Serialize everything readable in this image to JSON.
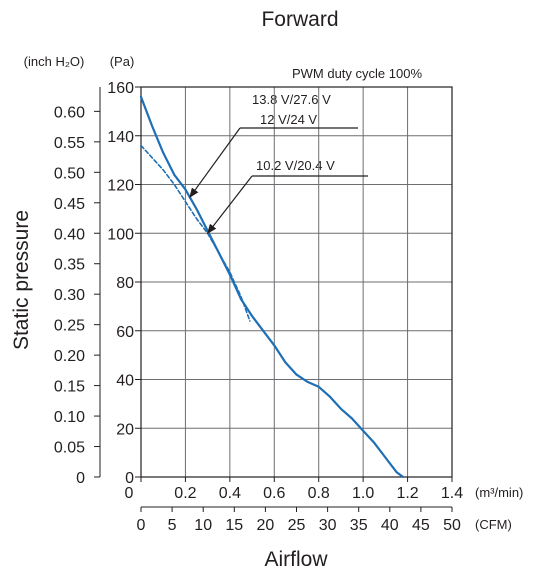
{
  "chart_data": {
    "type": "line",
    "title": "Forward",
    "ylabel": "Static pressure",
    "xlabel": "Airflow",
    "note": "PWM duty cycle 100%",
    "x_primary": {
      "unit": "(m³/min)",
      "range": [
        0,
        1.4
      ],
      "ticks": [
        "0",
        "0.2",
        "0.4",
        "0.6",
        "0.8",
        "1.0",
        "1.2",
        "1.4"
      ]
    },
    "x_secondary": {
      "unit": "(CFM)",
      "range": [
        0,
        50
      ],
      "ticks": [
        "0",
        "5",
        "10",
        "15",
        "20",
        "25",
        "30",
        "35",
        "40",
        "45",
        "50"
      ]
    },
    "y_primary": {
      "unit": "(Pa)",
      "range": [
        0,
        160
      ],
      "ticks": [
        "0",
        "20",
        "40",
        "60",
        "80",
        "100",
        "120",
        "140",
        "160"
      ]
    },
    "y_secondary": {
      "unit": "(inch H₂O)",
      "range": [
        0,
        0.64
      ],
      "ticks": [
        "0",
        "0.05",
        "0.10",
        "0.15",
        "0.20",
        "0.25",
        "0.30",
        "0.35",
        "0.40",
        "0.45",
        "0.50",
        "0.55",
        "0.60"
      ]
    },
    "grid": true,
    "series": [
      {
        "name": "13.8 V/27.6 V",
        "style": "solid",
        "color": "#1f6fb5",
        "points": [
          [
            0,
            156
          ],
          [
            0.05,
            144
          ],
          [
            0.1,
            133
          ],
          [
            0.15,
            124
          ],
          [
            0.2,
            118
          ],
          [
            0.25,
            110
          ],
          [
            0.3,
            101
          ],
          [
            0.35,
            92
          ],
          [
            0.4,
            83
          ],
          [
            0.45,
            73
          ],
          [
            0.5,
            66
          ],
          [
            0.55,
            60
          ],
          [
            0.6,
            54
          ],
          [
            0.65,
            47
          ],
          [
            0.7,
            42
          ],
          [
            0.75,
            39
          ],
          [
            0.8,
            37
          ],
          [
            0.85,
            33
          ],
          [
            0.9,
            28
          ],
          [
            0.95,
            24
          ],
          [
            1.0,
            19
          ],
          [
            1.05,
            14
          ],
          [
            1.1,
            8
          ],
          [
            1.15,
            2
          ],
          [
            1.18,
            0
          ]
        ]
      },
      {
        "name": "12 V/24 V",
        "style": "solid",
        "color": "#1f6fb5",
        "points": [
          [
            0,
            156
          ],
          [
            0.05,
            144
          ],
          [
            0.1,
            133
          ],
          [
            0.15,
            124
          ],
          [
            0.2,
            118
          ],
          [
            0.25,
            110
          ],
          [
            0.3,
            101
          ],
          [
            0.35,
            92
          ],
          [
            0.4,
            83
          ],
          [
            0.45,
            73
          ],
          [
            0.5,
            66
          ],
          [
            0.55,
            60
          ],
          [
            0.6,
            54
          ],
          [
            0.65,
            47
          ],
          [
            0.7,
            42
          ],
          [
            0.75,
            39
          ],
          [
            0.8,
            37
          ],
          [
            0.85,
            33
          ],
          [
            0.9,
            28
          ],
          [
            0.95,
            24
          ],
          [
            1.0,
            19
          ],
          [
            1.05,
            14
          ],
          [
            1.1,
            8
          ],
          [
            1.15,
            2
          ],
          [
            1.18,
            0
          ]
        ]
      },
      {
        "name": "10.2 V/20.4 V",
        "style": "dashed",
        "color": "#1f6fb5",
        "points": [
          [
            0,
            136
          ],
          [
            0.05,
            131
          ],
          [
            0.1,
            126
          ],
          [
            0.15,
            120
          ],
          [
            0.2,
            113
          ],
          [
            0.25,
            106
          ],
          [
            0.3,
            100
          ],
          [
            0.35,
            92
          ],
          [
            0.4,
            84
          ],
          [
            0.45,
            74
          ],
          [
            0.49,
            64
          ]
        ]
      }
    ],
    "annotations": [
      {
        "label": "13.8 V/27.6 V",
        "target_series": "13.8 V/27.6 V"
      },
      {
        "label": "12 V/24 V",
        "target_series": "12 V/24 V"
      },
      {
        "label": "10.2 V/20.4 V",
        "target_series": "10.2 V/20.4 V"
      }
    ]
  }
}
